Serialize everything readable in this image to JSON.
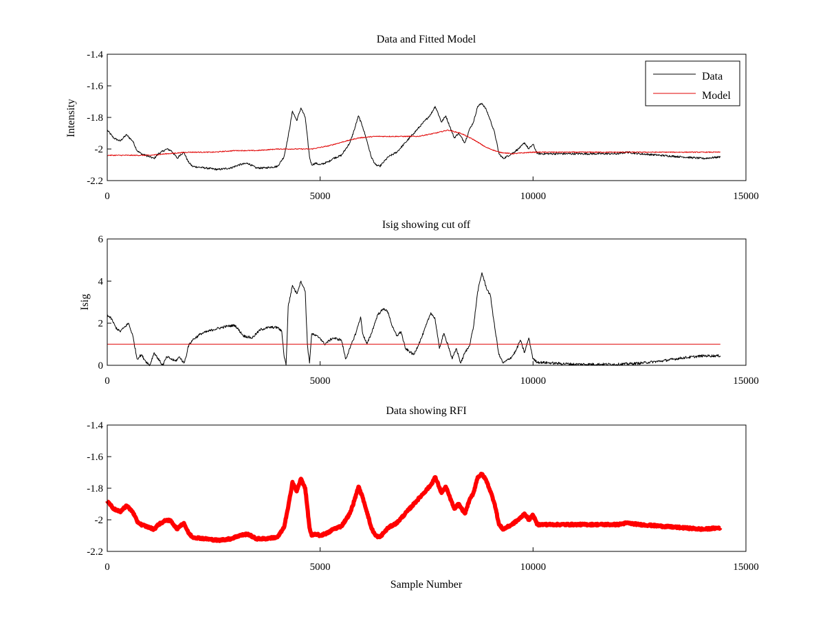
{
  "chart_data": [
    {
      "type": "line",
      "title": "Data and Fitted Model",
      "xlabel": "",
      "ylabel": "Intensity",
      "xlim": [
        0,
        15000
      ],
      "ylim": [
        -2.2,
        -1.4
      ],
      "xticks": [
        0,
        5000,
        10000,
        15000
      ],
      "xtick_labels": [
        "0",
        "5000",
        "10000",
        "15000"
      ],
      "yticks": [
        -1.4,
        -1.6,
        -1.8,
        -2,
        -2.2
      ],
      "ytick_labels": [
        "-1.4",
        "-1.6",
        "-1.8",
        "-2",
        "-2.2"
      ],
      "legend": {
        "placement": "top-right",
        "entries": [
          "Data",
          "Model"
        ]
      },
      "series": [
        {
          "name": "Data",
          "color": "#000000",
          "width": 1,
          "noise": 0.006,
          "x": [
            0,
            150,
            300,
            450,
            600,
            700,
            800,
            1000,
            1100,
            1200,
            1400,
            1500,
            1650,
            1700,
            1800,
            1900,
            2000,
            2300,
            2600,
            2900,
            3100,
            3300,
            3500,
            3700,
            4000,
            4150,
            4250,
            4350,
            4450,
            4550,
            4650,
            4750,
            4800,
            4900,
            5000,
            5200,
            5300,
            5500,
            5700,
            5800,
            5900,
            6000,
            6100,
            6200,
            6300,
            6400,
            6500,
            6600,
            6800,
            7000,
            7200,
            7400,
            7600,
            7700,
            7750,
            7850,
            7950,
            8050,
            8150,
            8250,
            8400,
            8500,
            8600,
            8700,
            8800,
            8900,
            9000,
            9100,
            9200,
            9300,
            9500,
            9700,
            9800,
            9900,
            10000,
            10100,
            10500,
            11000,
            11500,
            12000,
            12200,
            12500,
            13000,
            13500,
            14000,
            14400
          ],
          "y": [
            -1.88,
            -1.93,
            -1.95,
            -1.91,
            -1.95,
            -2.01,
            -2.03,
            -2.05,
            -2.06,
            -2.03,
            -2.0,
            -2.01,
            -2.06,
            -2.04,
            -2.02,
            -2.08,
            -2.11,
            -2.12,
            -2.13,
            -2.12,
            -2.1,
            -2.09,
            -2.12,
            -2.12,
            -2.11,
            -2.05,
            -1.92,
            -1.76,
            -1.82,
            -1.74,
            -1.8,
            -2.05,
            -2.1,
            -2.09,
            -2.1,
            -2.08,
            -2.06,
            -2.04,
            -1.96,
            -1.88,
            -1.79,
            -1.86,
            -1.95,
            -2.05,
            -2.1,
            -2.11,
            -2.08,
            -2.05,
            -2.02,
            -1.96,
            -1.9,
            -1.84,
            -1.78,
            -1.73,
            -1.76,
            -1.83,
            -1.79,
            -1.86,
            -1.93,
            -1.9,
            -1.96,
            -1.88,
            -1.83,
            -1.73,
            -1.71,
            -1.75,
            -1.82,
            -1.9,
            -2.03,
            -2.06,
            -2.03,
            -1.99,
            -1.96,
            -2.0,
            -1.97,
            -2.03,
            -2.03,
            -2.03,
            -2.03,
            -2.03,
            -2.02,
            -2.03,
            -2.04,
            -2.05,
            -2.06,
            -2.05
          ]
        },
        {
          "name": "Model",
          "color": "#e00000",
          "width": 1,
          "noise": 0.003,
          "x": [
            0,
            500,
            1000,
            1400,
            1900,
            2500,
            3000,
            3500,
            4000,
            4800,
            5200,
            5600,
            5900,
            6300,
            6800,
            7300,
            7700,
            8000,
            8300,
            8600,
            8900,
            9200,
            9500,
            10000,
            10500,
            11000,
            12000,
            13000,
            14400
          ],
          "y": [
            -2.04,
            -2.04,
            -2.04,
            -2.03,
            -2.02,
            -2.02,
            -2.01,
            -2.01,
            -2.0,
            -2.0,
            -1.98,
            -1.95,
            -1.93,
            -1.92,
            -1.92,
            -1.92,
            -1.9,
            -1.88,
            -1.9,
            -1.94,
            -1.99,
            -2.02,
            -2.03,
            -2.02,
            -2.02,
            -2.02,
            -2.02,
            -2.02,
            -2.02
          ]
        }
      ]
    },
    {
      "type": "line",
      "title": "Isig showing cut off",
      "xlabel": "",
      "ylabel": "Isig",
      "xlim": [
        0,
        15000
      ],
      "ylim": [
        0,
        6
      ],
      "xticks": [
        0,
        5000,
        10000,
        15000
      ],
      "xtick_labels": [
        "0",
        "5000",
        "10000",
        "15000"
      ],
      "yticks": [
        0,
        2,
        4,
        6
      ],
      "ytick_labels": [
        "0",
        "2",
        "4",
        "6"
      ],
      "series": [
        {
          "name": "Isig",
          "color": "#000000",
          "width": 1,
          "noise": 0.06,
          "x": [
            0,
            100,
            200,
            300,
            400,
            500,
            600,
            700,
            800,
            900,
            1000,
            1100,
            1300,
            1400,
            1600,
            1700,
            1800,
            1850,
            1900,
            2000,
            2200,
            2500,
            2800,
            3000,
            3200,
            3400,
            3600,
            3800,
            4000,
            4100,
            4150,
            4200,
            4250,
            4350,
            4450,
            4550,
            4650,
            4700,
            4750,
            4800,
            5000,
            5100,
            5300,
            5500,
            5600,
            5700,
            5850,
            5950,
            6000,
            6100,
            6200,
            6350,
            6500,
            6600,
            6700,
            6800,
            6900,
            7000,
            7200,
            7400,
            7600,
            7700,
            7750,
            7800,
            7900,
            8000,
            8100,
            8200,
            8300,
            8400,
            8500,
            8600,
            8700,
            8800,
            8900,
            9000,
            9100,
            9200,
            9300,
            9500,
            9600,
            9700,
            9800,
            9900,
            10000,
            10100,
            10500,
            11000,
            12000,
            12500,
            13000,
            13500,
            14000,
            14400
          ],
          "y": [
            2.4,
            2.2,
            1.8,
            1.6,
            1.8,
            2.0,
            1.4,
            0.3,
            0.5,
            0.2,
            0.0,
            0.6,
            0.0,
            0.4,
            0.2,
            0.4,
            0.1,
            0.4,
            0.9,
            1.2,
            1.5,
            1.7,
            1.85,
            1.9,
            1.4,
            1.3,
            1.7,
            1.8,
            1.8,
            1.6,
            0.5,
            0.0,
            2.8,
            3.8,
            3.4,
            4.0,
            3.5,
            1.0,
            0.1,
            1.5,
            1.3,
            1.0,
            1.3,
            1.2,
            0.3,
            0.8,
            1.6,
            2.3,
            1.5,
            1.0,
            1.5,
            2.4,
            2.7,
            2.5,
            1.8,
            1.4,
            1.6,
            0.8,
            0.5,
            1.4,
            2.5,
            2.2,
            1.5,
            0.8,
            1.5,
            1.0,
            0.3,
            0.8,
            0.1,
            0.6,
            0.9,
            1.8,
            3.5,
            4.4,
            3.7,
            3.3,
            1.8,
            0.5,
            0.1,
            0.4,
            0.7,
            1.2,
            0.6,
            1.3,
            0.3,
            0.15,
            0.1,
            0.05,
            0.05,
            0.1,
            0.2,
            0.35,
            0.45,
            0.45
          ]
        },
        {
          "name": "Cut off",
          "color": "#e00000",
          "width": 1,
          "noise": 0,
          "x": [
            0,
            14400
          ],
          "y": [
            1,
            1
          ]
        }
      ]
    },
    {
      "type": "line",
      "title": "Data showing RFI",
      "xlabel": "Sample Number",
      "ylabel": "",
      "xlim": [
        0,
        15000
      ],
      "ylim": [
        -2.2,
        -1.4
      ],
      "xticks": [
        0,
        5000,
        10000,
        15000
      ],
      "xtick_labels": [
        "0",
        "5000",
        "10000",
        "15000"
      ],
      "yticks": [
        -1.4,
        -1.6,
        -1.8,
        -2,
        -2.2
      ],
      "ytick_labels": [
        "-1.4",
        "-1.6",
        "-1.8",
        "-2",
        "-2.2"
      ],
      "series": [
        {
          "name": "RFI",
          "color": "#ff0000",
          "width": 6,
          "noise": 0.006,
          "x": [
            0,
            150,
            300,
            450,
            600,
            700,
            800,
            1000,
            1100,
            1200,
            1400,
            1500,
            1650,
            1700,
            1800,
            1900,
            2000,
            2300,
            2600,
            2900,
            3100,
            3300,
            3500,
            3700,
            4000,
            4150,
            4250,
            4350,
            4450,
            4550,
            4650,
            4750,
            4800,
            4900,
            5000,
            5200,
            5300,
            5500,
            5700,
            5800,
            5900,
            6000,
            6100,
            6200,
            6300,
            6400,
            6500,
            6600,
            6800,
            7000,
            7200,
            7400,
            7600,
            7700,
            7750,
            7850,
            7950,
            8050,
            8150,
            8250,
            8400,
            8500,
            8600,
            8700,
            8800,
            8900,
            9000,
            9100,
            9200,
            9300,
            9500,
            9700,
            9800,
            9900,
            10000,
            10100,
            10500,
            11000,
            11500,
            12000,
            12200,
            12500,
            13000,
            13500,
            14000,
            14400
          ],
          "y": [
            -1.88,
            -1.93,
            -1.95,
            -1.91,
            -1.95,
            -2.01,
            -2.03,
            -2.05,
            -2.06,
            -2.03,
            -2.0,
            -2.01,
            -2.06,
            -2.04,
            -2.02,
            -2.08,
            -2.11,
            -2.12,
            -2.13,
            -2.12,
            -2.1,
            -2.09,
            -2.12,
            -2.12,
            -2.11,
            -2.05,
            -1.92,
            -1.76,
            -1.82,
            -1.74,
            -1.8,
            -2.05,
            -2.1,
            -2.09,
            -2.1,
            -2.08,
            -2.06,
            -2.04,
            -1.96,
            -1.88,
            -1.79,
            -1.86,
            -1.95,
            -2.05,
            -2.1,
            -2.11,
            -2.08,
            -2.05,
            -2.02,
            -1.96,
            -1.9,
            -1.84,
            -1.78,
            -1.73,
            -1.76,
            -1.83,
            -1.79,
            -1.86,
            -1.93,
            -1.9,
            -1.96,
            -1.88,
            -1.83,
            -1.73,
            -1.71,
            -1.75,
            -1.82,
            -1.9,
            -2.03,
            -2.06,
            -2.03,
            -1.99,
            -1.96,
            -2.0,
            -1.97,
            -2.03,
            -2.03,
            -2.03,
            -2.03,
            -2.03,
            -2.02,
            -2.03,
            -2.04,
            -2.05,
            -2.06,
            -2.05
          ]
        }
      ]
    }
  ]
}
